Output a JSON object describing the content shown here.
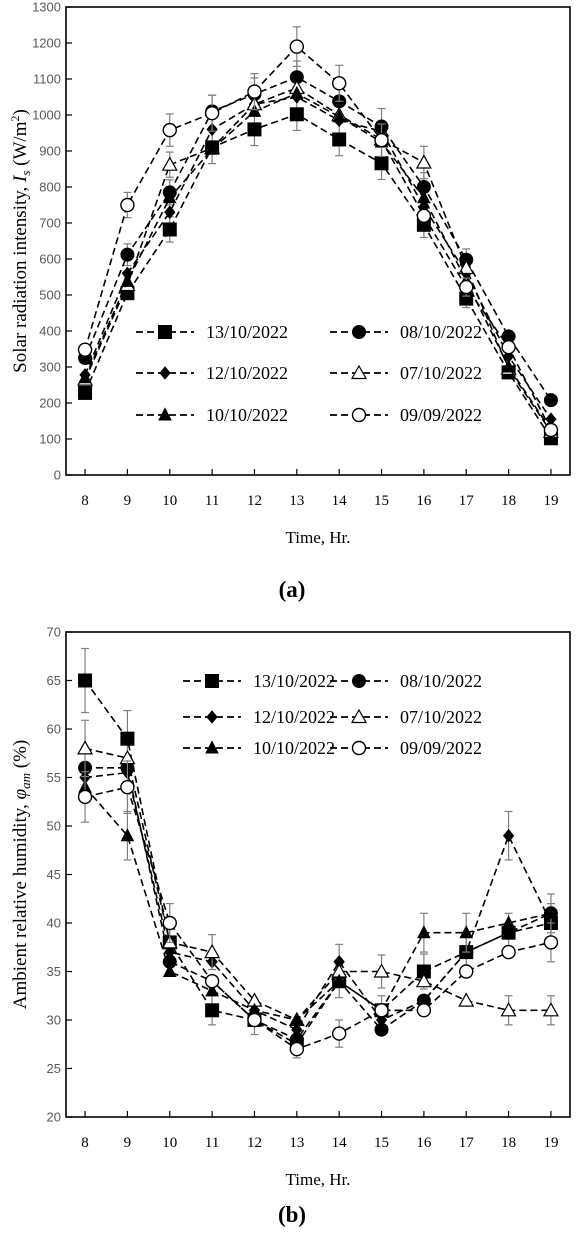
{
  "chart_data": [
    {
      "type": "line",
      "panel_label": "(a)",
      "xlabel": "Time, Hr.",
      "ylabel_main": "Solar radiation intensity, ",
      "ylabel_sym": "I",
      "ylabel_sub": "s",
      "ylabel_unit": " (W/m",
      "ylabel_unit_sup": "2",
      "ylabel_close": ")",
      "x": [
        8,
        9,
        10,
        11,
        12,
        13,
        14,
        15,
        16,
        17,
        18,
        19
      ],
      "xlim": [
        7.55,
        19.45
      ],
      "ylim": [
        0,
        1300
      ],
      "yticks": [
        0,
        100,
        200,
        300,
        400,
        500,
        600,
        700,
        800,
        900,
        1000,
        1100,
        1200,
        1300
      ],
      "legend_position": "bottom-center",
      "series": [
        {
          "name": "13/10/2022",
          "marker": "square",
          "values": [
            228,
            505,
            682,
            910,
            960,
            1002,
            932,
            866,
            695,
            490,
            285,
            102
          ],
          "err": [
            0,
            0,
            35,
            45,
            45,
            45,
            45,
            45,
            35,
            25,
            0,
            0
          ]
        },
        {
          "name": "08/10/2022",
          "marker": "circle-filled",
          "values": [
            325,
            612,
            785,
            1010,
            1058,
            1105,
            1038,
            968,
            800,
            598,
            385,
            208
          ],
          "err": [
            0,
            30,
            35,
            45,
            45,
            45,
            45,
            50,
            40,
            30,
            0,
            0
          ]
        },
        {
          "name": "12/10/2022",
          "marker": "diamond",
          "values": [
            278,
            560,
            730,
            960,
            1030,
            1050,
            985,
            955,
            745,
            560,
            330,
            155
          ],
          "err": [
            0,
            0,
            0,
            0,
            0,
            0,
            0,
            0,
            0,
            0,
            0,
            0
          ]
        },
        {
          "name": "07/10/2022",
          "marker": "triangle-open",
          "values": [
            265,
            528,
            862,
            908,
            1030,
            1075,
            1000,
            932,
            868,
            575,
            295,
            120
          ],
          "err": [
            0,
            0,
            35,
            0,
            0,
            0,
            0,
            0,
            45,
            0,
            0,
            0
          ]
        },
        {
          "name": "10/10/2022",
          "marker": "triangle-filled",
          "values": [
            270,
            538,
            770,
            905,
            1010,
            1060,
            995,
            925,
            770,
            540,
            300,
            125
          ],
          "err": [
            0,
            0,
            0,
            0,
            0,
            0,
            0,
            0,
            0,
            0,
            0,
            0
          ]
        },
        {
          "name": "09/09/2022",
          "marker": "circle-open",
          "values": [
            348,
            750,
            958,
            1005,
            1065,
            1190,
            1088,
            930,
            720,
            522,
            355,
            125
          ],
          "err": [
            0,
            35,
            45,
            50,
            50,
            55,
            50,
            45,
            0,
            25,
            0,
            0
          ]
        }
      ]
    },
    {
      "type": "line",
      "panel_label": "(b)",
      "xlabel": "Time, Hr.",
      "ylabel_main": "Ambient relative humidity, ",
      "ylabel_sym": "φ",
      "ylabel_sub": "am",
      "ylabel_close": " (%)",
      "x": [
        8,
        9,
        10,
        11,
        12,
        13,
        14,
        15,
        16,
        17,
        18,
        19
      ],
      "xlim": [
        7.55,
        19.45
      ],
      "ylim": [
        20,
        70
      ],
      "yticks": [
        20,
        25,
        30,
        35,
        40,
        45,
        50,
        55,
        60,
        65,
        70
      ],
      "legend_position": "top-center",
      "series": [
        {
          "name": "13/10/2022",
          "marker": "square",
          "values": [
            65,
            59,
            38,
            31,
            30,
            27.5,
            34,
            31,
            35,
            37,
            39,
            40
          ],
          "err": [
            3.3,
            2.9,
            2,
            1.5,
            1.5,
            1.4,
            1.7,
            1.5,
            1.8,
            1.8,
            2,
            2
          ]
        },
        {
          "name": "08/10/2022",
          "marker": "circle-filled",
          "values": [
            56,
            56,
            36,
            34,
            30,
            28,
            34,
            29,
            32,
            37,
            39,
            41
          ],
          "err": [
            0,
            0,
            0,
            0,
            0,
            0,
            0,
            0,
            0,
            0,
            0,
            0
          ]
        },
        {
          "name": "12/10/2022",
          "marker": "diamond",
          "values": [
            55,
            55.5,
            37,
            36,
            31,
            29,
            36,
            30,
            32,
            37,
            49,
            40
          ],
          "err": [
            0,
            0,
            0,
            0,
            0,
            0,
            1.8,
            0,
            0,
            0,
            2.5,
            0
          ]
        },
        {
          "name": "07/10/2022",
          "marker": "triangle-open",
          "values": [
            58,
            57,
            38,
            37,
            32,
            30,
            35,
            35,
            34,
            32,
            31,
            31
          ],
          "err": [
            2.9,
            0,
            0,
            1.8,
            0,
            0,
            0,
            1.7,
            0,
            0,
            1.5,
            1.5
          ]
        },
        {
          "name": "10/10/2022",
          "marker": "triangle-filled",
          "values": [
            54,
            49,
            35,
            33,
            31,
            30,
            34,
            31,
            39,
            39,
            40,
            41
          ],
          "err": [
            0,
            2.5,
            0,
            0,
            0,
            0,
            0,
            0,
            2,
            2,
            0,
            2
          ]
        },
        {
          "name": "09/09/2022",
          "marker": "circle-open",
          "values": [
            53,
            54,
            40,
            34,
            30,
            27,
            28.6,
            31,
            31,
            35,
            37,
            38
          ],
          "err": [
            2.6,
            2.7,
            2,
            0,
            0,
            0,
            1.4,
            0,
            0,
            0,
            0,
            2
          ]
        }
      ]
    }
  ]
}
